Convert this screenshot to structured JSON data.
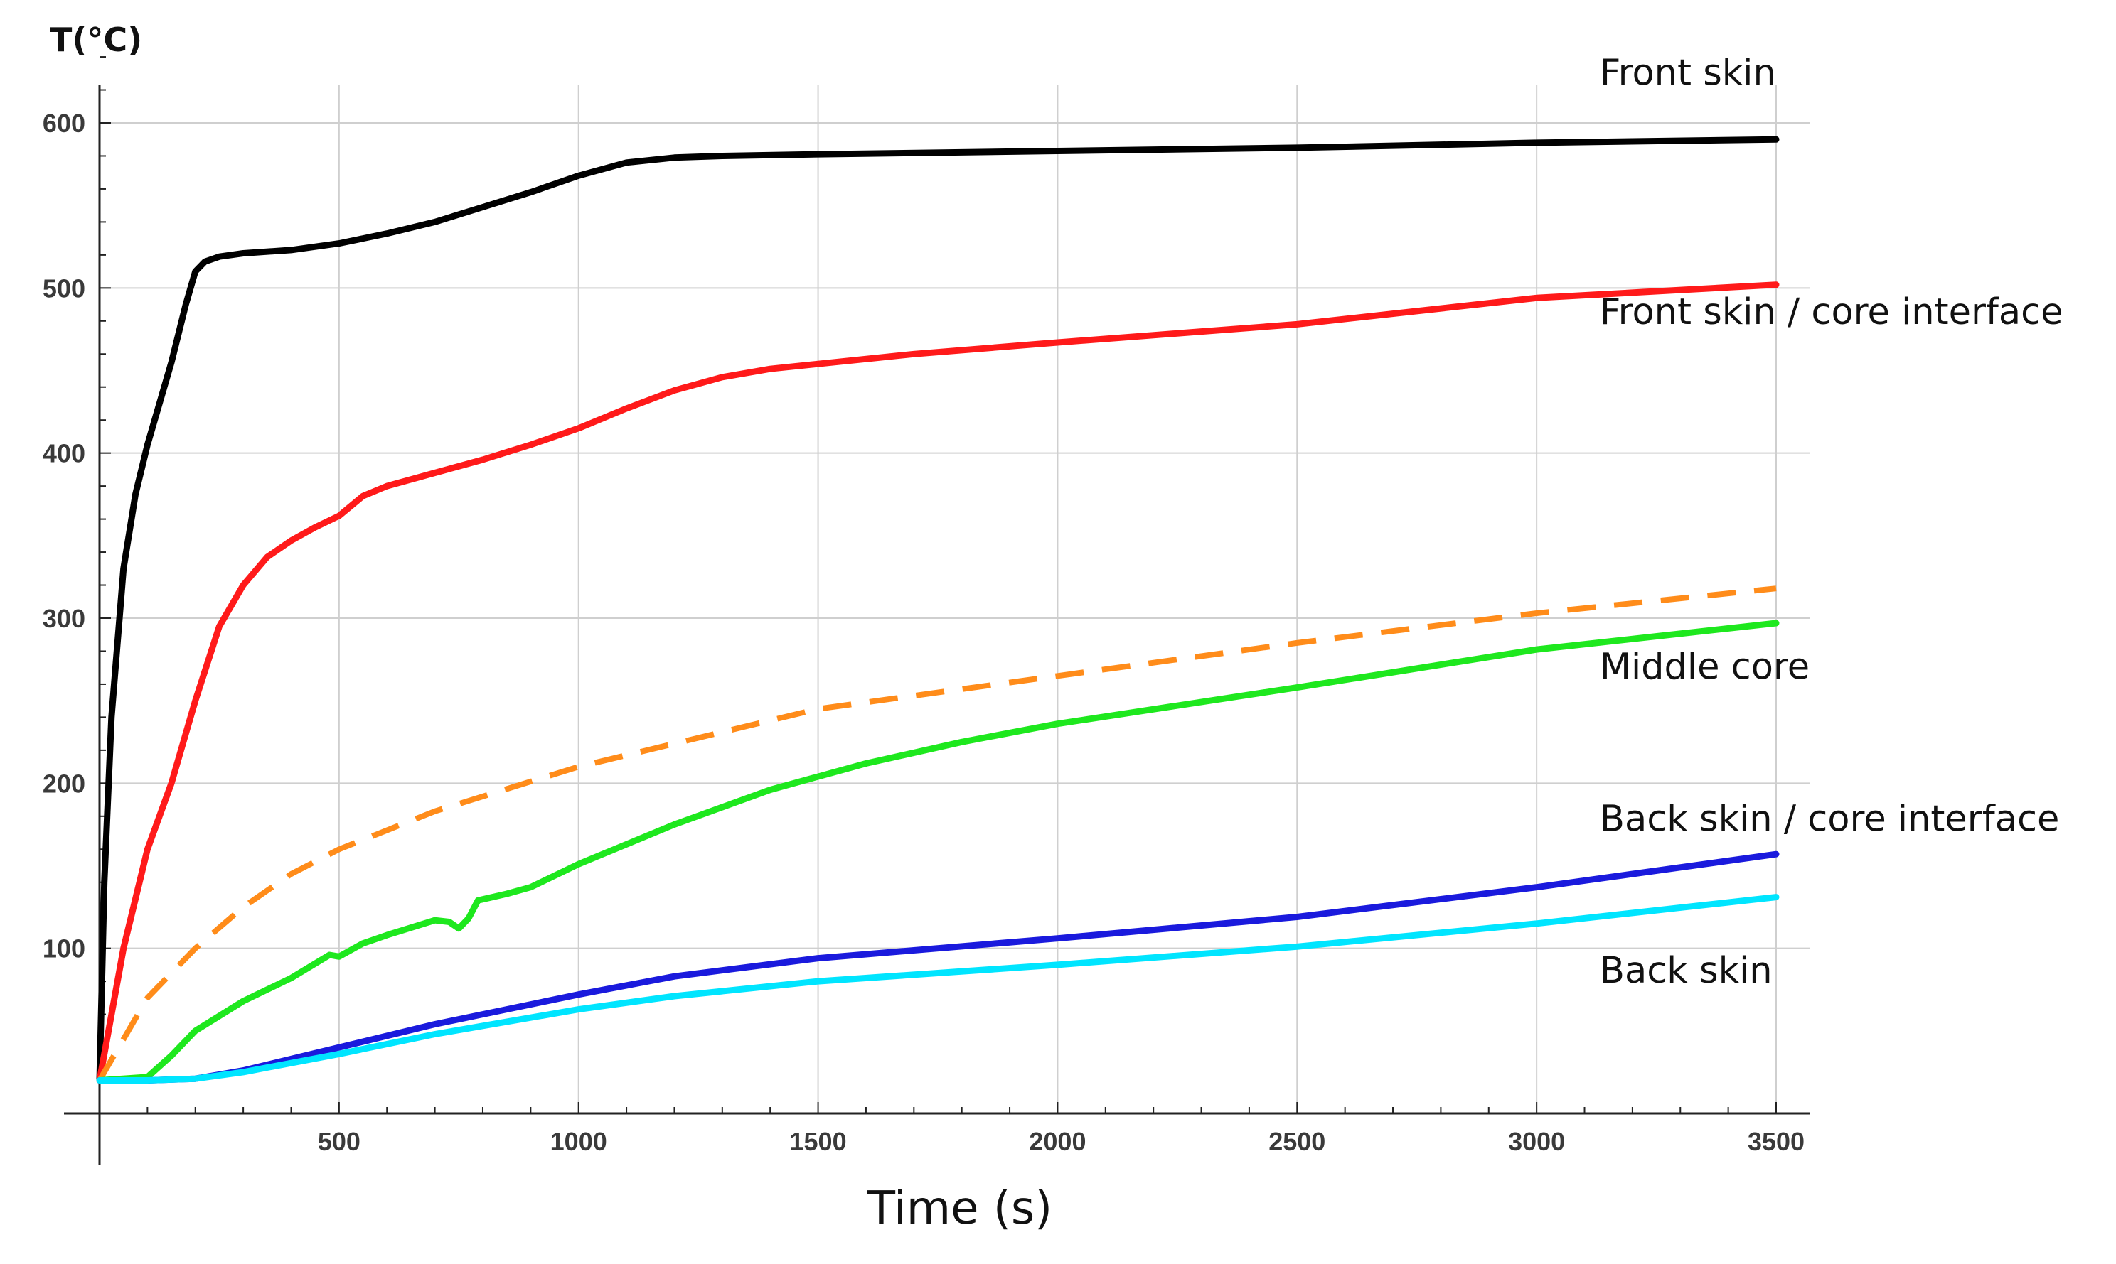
{
  "chart_data": {
    "type": "line",
    "xlabel": "Time (s)",
    "ylabel": "T(°C)",
    "xlim": [
      0,
      3500
    ],
    "ylim": [
      0,
      600
    ],
    "x_ticks": [
      500,
      1000,
      1500,
      2000,
      2500,
      3000,
      3500
    ],
    "y_ticks": [
      100,
      200,
      300,
      400,
      500,
      600
    ],
    "grid": true,
    "annotations": [
      {
        "text": "Front skin",
        "x": 3500,
        "y": 630
      },
      {
        "text": "Front skin / core interface",
        "x": 3500,
        "y": 485
      },
      {
        "text": "Middle core",
        "x": 3500,
        "y": 270
      },
      {
        "text": "Back skin / core interface",
        "x": 3500,
        "y": 178
      },
      {
        "text": "Back skin",
        "x": 3500,
        "y": 86
      }
    ],
    "series": [
      {
        "color": "#000000",
        "dashed": false,
        "points": [
          [
            0,
            20
          ],
          [
            10,
            140
          ],
          [
            25,
            240
          ],
          [
            50,
            330
          ],
          [
            75,
            375
          ],
          [
            100,
            405
          ],
          [
            150,
            455
          ],
          [
            180,
            490
          ],
          [
            200,
            510
          ],
          [
            220,
            516
          ],
          [
            250,
            519
          ],
          [
            300,
            521
          ],
          [
            400,
            523
          ],
          [
            500,
            527
          ],
          [
            600,
            533
          ],
          [
            700,
            540
          ],
          [
            800,
            549
          ],
          [
            900,
            558
          ],
          [
            1000,
            568
          ],
          [
            1100,
            576
          ],
          [
            1200,
            579
          ],
          [
            1300,
            580
          ],
          [
            1500,
            581
          ],
          [
            2000,
            583
          ],
          [
            2500,
            585
          ],
          [
            3000,
            588
          ],
          [
            3500,
            590
          ]
        ]
      },
      {
        "color": "#ff1a1a",
        "dashed": false,
        "points": [
          [
            0,
            20
          ],
          [
            50,
            100
          ],
          [
            100,
            160
          ],
          [
            150,
            200
          ],
          [
            200,
            250
          ],
          [
            250,
            295
          ],
          [
            300,
            320
          ],
          [
            350,
            337
          ],
          [
            400,
            347
          ],
          [
            450,
            355
          ],
          [
            500,
            362
          ],
          [
            550,
            374
          ],
          [
            600,
            380
          ],
          [
            700,
            388
          ],
          [
            800,
            396
          ],
          [
            900,
            405
          ],
          [
            1000,
            415
          ],
          [
            1100,
            427
          ],
          [
            1200,
            438
          ],
          [
            1300,
            446
          ],
          [
            1400,
            451
          ],
          [
            1500,
            454
          ],
          [
            1700,
            460
          ],
          [
            2000,
            467
          ],
          [
            2500,
            478
          ],
          [
            3000,
            494
          ],
          [
            3500,
            502
          ]
        ]
      },
      {
        "color": "#ff8c1a",
        "dashed": true,
        "points": [
          [
            0,
            20
          ],
          [
            50,
            45
          ],
          [
            100,
            70
          ],
          [
            200,
            100
          ],
          [
            300,
            125
          ],
          [
            400,
            145
          ],
          [
            500,
            160
          ],
          [
            700,
            183
          ],
          [
            1000,
            210
          ],
          [
            1500,
            245
          ],
          [
            2000,
            265
          ],
          [
            2500,
            285
          ],
          [
            3000,
            303
          ],
          [
            3500,
            318
          ]
        ]
      },
      {
        "color": "#1ee81e",
        "dashed": false,
        "points": [
          [
            0,
            20
          ],
          [
            100,
            22
          ],
          [
            150,
            35
          ],
          [
            200,
            50
          ],
          [
            300,
            68
          ],
          [
            400,
            82
          ],
          [
            480,
            96
          ],
          [
            500,
            95
          ],
          [
            550,
            103
          ],
          [
            600,
            108
          ],
          [
            700,
            117
          ],
          [
            730,
            116
          ],
          [
            750,
            112
          ],
          [
            770,
            118
          ],
          [
            790,
            129
          ],
          [
            850,
            133
          ],
          [
            900,
            137
          ],
          [
            1000,
            151
          ],
          [
            1200,
            175
          ],
          [
            1400,
            196
          ],
          [
            1600,
            212
          ],
          [
            1800,
            225
          ],
          [
            2000,
            236
          ],
          [
            2500,
            258
          ],
          [
            3000,
            281
          ],
          [
            3500,
            297
          ]
        ]
      },
      {
        "color": "#1a1add",
        "dashed": false,
        "points": [
          [
            0,
            20
          ],
          [
            100,
            20
          ],
          [
            200,
            21
          ],
          [
            300,
            26
          ],
          [
            500,
            40
          ],
          [
            700,
            54
          ],
          [
            1000,
            72
          ],
          [
            1200,
            83
          ],
          [
            1500,
            94
          ],
          [
            2000,
            106
          ],
          [
            2500,
            119
          ],
          [
            3000,
            137
          ],
          [
            3500,
            157
          ]
        ]
      },
      {
        "color": "#00e5ff",
        "dashed": false,
        "points": [
          [
            0,
            20
          ],
          [
            100,
            20
          ],
          [
            200,
            21
          ],
          [
            300,
            25
          ],
          [
            500,
            36
          ],
          [
            700,
            48
          ],
          [
            1000,
            63
          ],
          [
            1200,
            71
          ],
          [
            1500,
            80
          ],
          [
            2000,
            90
          ],
          [
            2500,
            101
          ],
          [
            3000,
            115
          ],
          [
            3500,
            131
          ]
        ]
      }
    ]
  }
}
